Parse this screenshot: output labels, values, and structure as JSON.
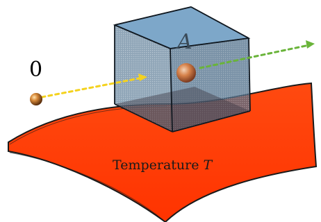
{
  "labels": {
    "particle_in": "0",
    "box_label": "A",
    "surface_label_prefix": "Temperature",
    "surface_label_var": "T"
  },
  "colors": {
    "surface": "#ff3a00",
    "surface_edge": "#1a1a1a",
    "box_front": "#5f7f98",
    "box_top": "#6f9ec4",
    "box_right": "#4e6e8a",
    "incoming_path": "#f4d21e",
    "outgoing_path": "#6ab43a",
    "particle": "#c8762a"
  }
}
